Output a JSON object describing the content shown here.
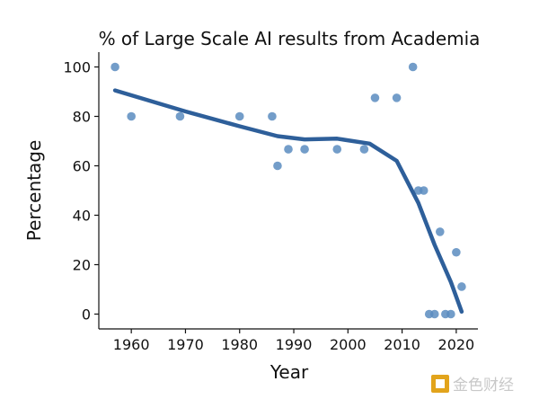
{
  "chart_data": {
    "type": "scatter",
    "title": "% of Large Scale AI results from Academia",
    "xlabel": "Year",
    "ylabel": "Percentage",
    "xlim": [
      1954,
      2024
    ],
    "ylim": [
      -6,
      106
    ],
    "xticks": [
      1960,
      1970,
      1980,
      1990,
      2000,
      2010,
      2020
    ],
    "yticks": [
      0,
      20,
      40,
      60,
      80,
      100
    ],
    "grid": false,
    "point_color": "#5b8cc0",
    "line_color": "#2e5f9a",
    "series": [
      {
        "type": "scatter",
        "points": [
          {
            "x": 1957,
            "y": 100
          },
          {
            "x": 1960,
            "y": 80
          },
          {
            "x": 1969,
            "y": 80
          },
          {
            "x": 1980,
            "y": 80
          },
          {
            "x": 1986,
            "y": 80
          },
          {
            "x": 1987,
            "y": 60
          },
          {
            "x": 1989,
            "y": 66.7
          },
          {
            "x": 1992,
            "y": 66.7
          },
          {
            "x": 1998,
            "y": 66.7
          },
          {
            "x": 2003,
            "y": 66.7
          },
          {
            "x": 2005,
            "y": 87.5
          },
          {
            "x": 2009,
            "y": 87.5
          },
          {
            "x": 2012,
            "y": 100
          },
          {
            "x": 2013,
            "y": 50
          },
          {
            "x": 2014,
            "y": 50
          },
          {
            "x": 2015,
            "y": 0
          },
          {
            "x": 2016,
            "y": 0
          },
          {
            "x": 2017,
            "y": 33.3
          },
          {
            "x": 2018,
            "y": 0
          },
          {
            "x": 2019,
            "y": 0
          },
          {
            "x": 2020,
            "y": 25
          },
          {
            "x": 2021,
            "y": 11.1
          }
        ]
      },
      {
        "type": "line",
        "points": [
          {
            "x": 1957,
            "y": 90.5
          },
          {
            "x": 1970,
            "y": 82
          },
          {
            "x": 1980,
            "y": 76
          },
          {
            "x": 1987,
            "y": 72
          },
          {
            "x": 1992,
            "y": 70.7
          },
          {
            "x": 1998,
            "y": 71
          },
          {
            "x": 2004,
            "y": 69
          },
          {
            "x": 2009,
            "y": 62
          },
          {
            "x": 2013,
            "y": 45
          },
          {
            "x": 2016,
            "y": 28
          },
          {
            "x": 2019,
            "y": 13
          },
          {
            "x": 2021,
            "y": 1
          }
        ]
      }
    ]
  },
  "watermark": {
    "text": "金色财经",
    "icon": "gold-square-logo-icon",
    "color": "#e2a41c"
  }
}
